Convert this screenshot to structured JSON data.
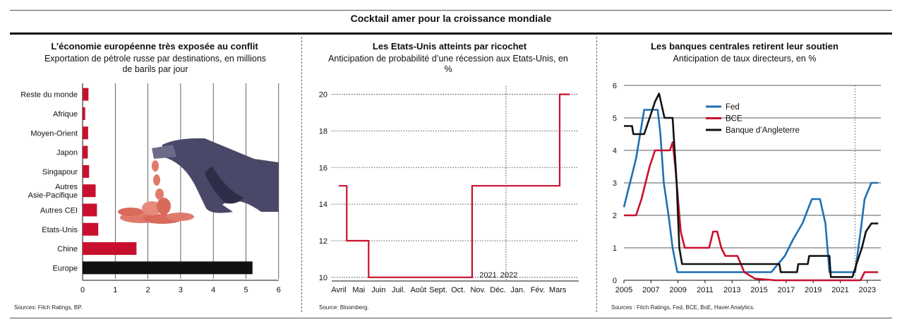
{
  "title": "Cocktail amer pour la croissance mondiale",
  "colors": {
    "red": "#c8102e",
    "blue": "#1f6fb2",
    "black": "#111111",
    "grid": "#222222"
  },
  "panels": [
    {
      "title": "L’économie européenne très exposée au conflit",
      "subtitle": "Exportation de pétrole russe par destinations, en millions de barils par jour",
      "source": "Sources: Fitch Ratings, BP."
    },
    {
      "title": "Les Etats-Unis atteints par ricochet",
      "subtitle": "Anticipation de probabilité d’une récession aux Etats-Unis, en %",
      "source": "Source: Bloomberg."
    },
    {
      "title": "Les banques centrales retirent leur soutien",
      "subtitle": "Anticipation de taux directeurs, en %",
      "source": "Sources : Fitch Ratings, Fed, BCE, BoE, Haver Analytics."
    }
  ],
  "chart_data": [
    {
      "type": "bar",
      "orientation": "horizontal",
      "title": "L’économie européenne très exposée au conflit",
      "categories": [
        "Reste du monde",
        "Afrique",
        "Moyen-Orient",
        "Japon",
        "Singapour",
        "Autres\nAsie-Pacifique",
        "Autres CEI",
        "Etats-Unis",
        "Chine",
        "Europe"
      ],
      "values": [
        0.18,
        0.08,
        0.17,
        0.16,
        0.2,
        0.4,
        0.44,
        0.48,
        1.65,
        5.2
      ],
      "bar_colors": [
        "red",
        "red",
        "red",
        "red",
        "red",
        "red",
        "red",
        "red",
        "red",
        "black"
      ],
      "xlim": [
        0,
        6
      ],
      "xticks": [
        0,
        1,
        2,
        3,
        4,
        5,
        6
      ],
      "grid": true
    },
    {
      "type": "line",
      "title": "Les Etats-Unis atteints par ricochet",
      "x_labels": [
        "Avril",
        "Mai",
        "Juin",
        "Juil.",
        "Août",
        "Sept.",
        "Oct.",
        "Nov.",
        "Déc.",
        "Jan.",
        "Fév.",
        "Mars"
      ],
      "year_labels": [
        "2021",
        "2022"
      ],
      "series": [
        {
          "color": "red",
          "step_points": [
            [
              0,
              15
            ],
            [
              0.4,
              15
            ],
            [
              0.4,
              12
            ],
            [
              1.5,
              12
            ],
            [
              1.5,
              10
            ],
            [
              6.7,
              10
            ],
            [
              6.7,
              15
            ],
            [
              11.1,
              15
            ],
            [
              11.1,
              20
            ],
            [
              11.6,
              20
            ]
          ]
        }
      ],
      "ylim": [
        9.8,
        20.6
      ],
      "yticks": [
        10,
        12,
        14,
        16,
        18,
        20
      ],
      "grid": true
    },
    {
      "type": "line",
      "title": "Les banques centrales retirent leur soutien",
      "x_ticks": [
        2005,
        2007,
        2009,
        2011,
        2013,
        2015,
        2017,
        2019,
        2021,
        2023
      ],
      "xlim": [
        2005,
        2024
      ],
      "ylim": [
        0,
        6
      ],
      "yticks": [
        0,
        1,
        2,
        3,
        4,
        5,
        6
      ],
      "grid": true,
      "series": [
        {
          "name": "Fed",
          "color": "blue",
          "points": [
            [
              2005,
              2.25
            ],
            [
              2005.3,
              2.75
            ],
            [
              2005.6,
              3.25
            ],
            [
              2005.9,
              3.75
            ],
            [
              2006.2,
              4.5
            ],
            [
              2006.5,
              5.25
            ],
            [
              2007.5,
              5.25
            ],
            [
              2007.7,
              4.5
            ],
            [
              2007.95,
              3.0
            ],
            [
              2008.3,
              2.0
            ],
            [
              2008.6,
              1.0
            ],
            [
              2008.95,
              0.25
            ],
            [
              2015.9,
              0.25
            ],
            [
              2016.9,
              0.75
            ],
            [
              2017.5,
              1.25
            ],
            [
              2018.2,
              1.75
            ],
            [
              2018.9,
              2.5
            ],
            [
              2019.5,
              2.5
            ],
            [
              2019.9,
              1.75
            ],
            [
              2020.2,
              0.25
            ],
            [
              2022.1,
              0.25
            ],
            [
              2022.5,
              1.5
            ],
            [
              2022.8,
              2.5
            ],
            [
              2023.3,
              3.0
            ],
            [
              2023.8,
              3.0
            ]
          ]
        },
        {
          "name": "BCE",
          "color": "red",
          "points": [
            [
              2005,
              2.0
            ],
            [
              2005.9,
              2.0
            ],
            [
              2006.3,
              2.5
            ],
            [
              2006.9,
              3.5
            ],
            [
              2007.3,
              4.0
            ],
            [
              2008.4,
              4.0
            ],
            [
              2008.6,
              4.25
            ],
            [
              2008.8,
              3.5
            ],
            [
              2009.2,
              1.5
            ],
            [
              2009.5,
              1.0
            ],
            [
              2011.3,
              1.0
            ],
            [
              2011.6,
              1.5
            ],
            [
              2011.9,
              1.5
            ],
            [
              2012.2,
              1.0
            ],
            [
              2012.5,
              0.75
            ],
            [
              2013.4,
              0.75
            ],
            [
              2013.9,
              0.25
            ],
            [
              2014.7,
              0.05
            ],
            [
              2016.2,
              0.0
            ],
            [
              2022.5,
              0.0
            ],
            [
              2022.8,
              0.25
            ],
            [
              2023.8,
              0.25
            ]
          ]
        },
        {
          "name": "Banque d’Angleterre",
          "color": "black",
          "points": [
            [
              2005,
              4.75
            ],
            [
              2005.6,
              4.75
            ],
            [
              2005.7,
              4.5
            ],
            [
              2006.5,
              4.5
            ],
            [
              2006.9,
              5.0
            ],
            [
              2007.3,
              5.5
            ],
            [
              2007.6,
              5.75
            ],
            [
              2008.0,
              5.0
            ],
            [
              2008.6,
              5.0
            ],
            [
              2008.9,
              3.0
            ],
            [
              2009.1,
              1.0
            ],
            [
              2009.3,
              0.5
            ],
            [
              2016.5,
              0.5
            ],
            [
              2016.6,
              0.25
            ],
            [
              2017.8,
              0.25
            ],
            [
              2017.9,
              0.5
            ],
            [
              2018.6,
              0.5
            ],
            [
              2018.7,
              0.75
            ],
            [
              2020.2,
              0.75
            ],
            [
              2020.3,
              0.1
            ],
            [
              2021.9,
              0.1
            ],
            [
              2022.2,
              0.5
            ],
            [
              2022.6,
              1.0
            ],
            [
              2022.9,
              1.5
            ],
            [
              2023.3,
              1.75
            ],
            [
              2023.8,
              1.75
            ]
          ]
        }
      ],
      "legend": [
        "Fed",
        "BCE",
        "Banque d’Angleterre"
      ],
      "legend_placement": "top-left"
    }
  ]
}
